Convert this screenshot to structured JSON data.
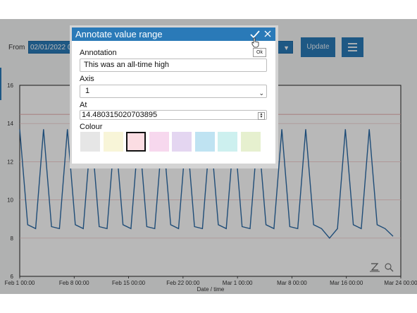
{
  "toolbar": {
    "from_label": "From",
    "from_value": "02/01/2022 00:",
    "update_label": "Update",
    "menu_icon": "hamburger-menu-icon"
  },
  "chart_data": {
    "type": "line",
    "title": "",
    "xlabel": "Date / time",
    "ylabel": "",
    "ylim": [
      6,
      16
    ],
    "y_ticks": [
      "6",
      "8",
      "10",
      "12",
      "14",
      "16"
    ],
    "x_ticks": [
      "Feb 1 00:00",
      "Feb 8 00:00",
      "Feb 15 00:00",
      "Feb 22 00:00",
      "Mar 1 00:00",
      "Mar 8 00:00",
      "Mar 16 00:00",
      "Mar 24 00:00"
    ],
    "reference_line": 14.48,
    "series": [
      {
        "color": "#2a6aa6",
        "values": [
          13.7,
          8.7,
          8.5,
          13.7,
          8.6,
          8.5,
          13.7,
          8.7,
          8.5,
          13.7,
          8.6,
          8.5,
          13.7,
          8.7,
          8.5,
          13.7,
          8.6,
          8.5,
          13.7,
          8.7,
          8.5,
          13.7,
          8.6,
          8.5,
          13.7,
          8.7,
          8.5,
          13.7,
          8.6,
          8.5,
          13.7,
          8.7,
          8.5,
          13.7,
          8.6,
          8.5,
          13.7,
          8.7,
          8.5,
          8.0,
          8.5,
          13.7,
          8.7,
          8.5,
          13.7,
          8.7,
          8.5,
          8.1
        ]
      }
    ],
    "grid": true,
    "toolbar_icons": [
      "zoom-reset-icon",
      "magnifier-icon"
    ]
  },
  "dialog": {
    "title": "Annotate value range",
    "ok_tooltip": "Ok",
    "annotation_label": "Annotation",
    "annotation_value": "This was an all-time high",
    "axis_label": "Axis",
    "axis_value": "1",
    "at_label": "At",
    "at_value": "14.480315020703895",
    "colour_label": "Colour",
    "swatches": [
      "#e6e6e6",
      "#f8f5d8",
      "#fbdde3",
      "#f7d8ee",
      "#e4d6f1",
      "#bfe3f2",
      "#cdf0ef",
      "#e6f0cf"
    ],
    "selected_swatch": 2
  }
}
